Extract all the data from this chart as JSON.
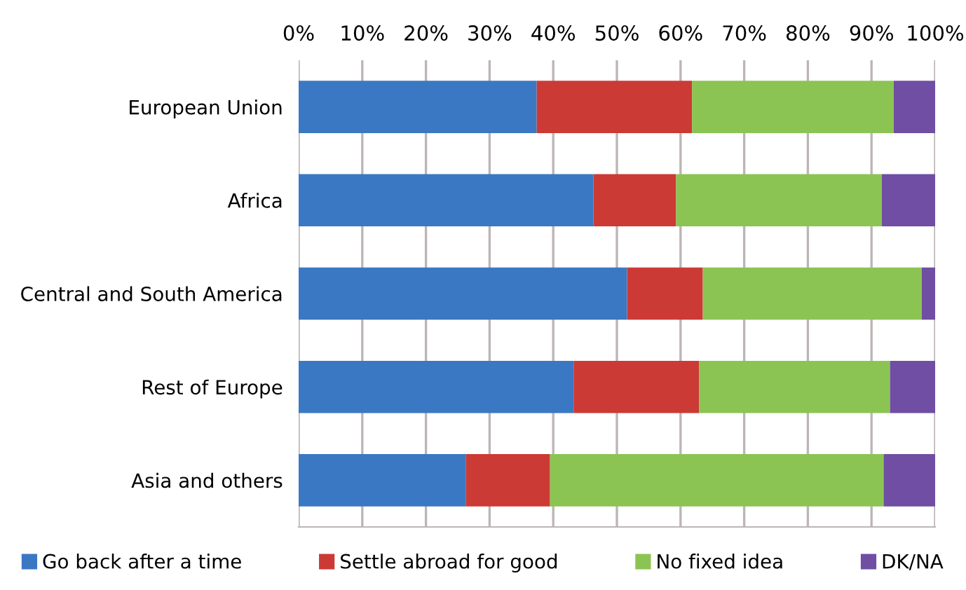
{
  "chart_data": {
    "type": "bar",
    "orientation": "horizontal",
    "stacked": true,
    "categories": [
      "European Union",
      "Africa",
      "Central and South America",
      "Rest of Europe",
      "Asia and others"
    ],
    "series": [
      {
        "name": "Go back after a time",
        "color": "#3a78c3",
        "values": [
          37.4,
          46.3,
          51.6,
          43.2,
          26.3
        ]
      },
      {
        "name": "Settle abroad for good",
        "color": "#cc3a36",
        "values": [
          24.4,
          13,
          11.9,
          19.7,
          13.2
        ]
      },
      {
        "name": "No fixed idea",
        "color": "#8cc453",
        "values": [
          31.7,
          32.3,
          34.4,
          30,
          52.4
        ]
      },
      {
        "name": "DK/NA",
        "color": "#6f4ea3",
        "values": [
          6.5,
          8.4,
          2.1,
          7.1,
          8.1
        ]
      }
    ],
    "xlim": [
      0,
      100
    ],
    "xticks": [
      {
        "value": 0,
        "label": "0%"
      },
      {
        "value": 10,
        "label": "10%"
      },
      {
        "value": 20,
        "label": "20%"
      },
      {
        "value": 30,
        "label": "30%"
      },
      {
        "value": 40,
        "label": "40%"
      },
      {
        "value": 50,
        "label": "50%"
      },
      {
        "value": 60,
        "label": "60%"
      },
      {
        "value": 70,
        "label": "70%"
      },
      {
        "value": 80,
        "label": "80%"
      },
      {
        "value": 90,
        "label": "90%"
      },
      {
        "value": 100,
        "label": "100%"
      }
    ],
    "grid": "x",
    "legend": "bottom"
  }
}
